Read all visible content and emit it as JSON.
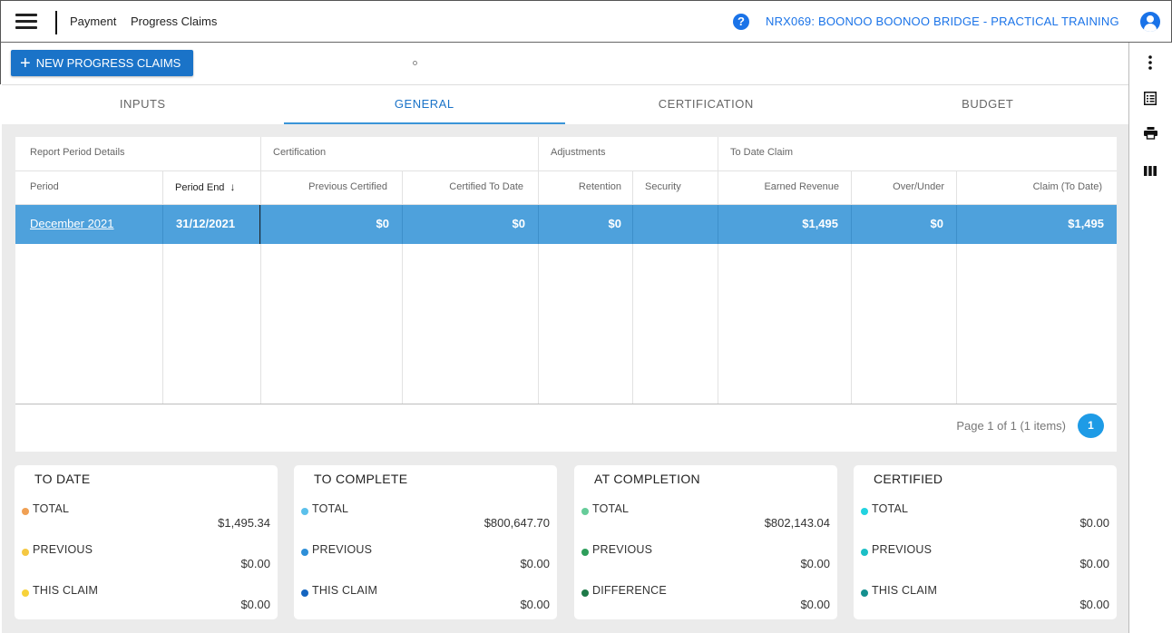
{
  "header": {
    "crumb_module": "Payment",
    "crumb_page": "Progress Claims",
    "help_glyph": "?",
    "project_title": "NRX069: BOONOO BOONOO BRIDGE - PRACTICAL TRAINING"
  },
  "toolbar": {
    "new_button_icon": "+",
    "new_button_label": "NEW PROGRESS CLAIMS"
  },
  "tabs": [
    {
      "label": "INPUTS",
      "active": false
    },
    {
      "label": "GENERAL",
      "active": true
    },
    {
      "label": "CERTIFICATION",
      "active": false
    },
    {
      "label": "BUDGET",
      "active": false
    }
  ],
  "grid": {
    "groups": {
      "report": "Report Period Details",
      "certification": "Certification",
      "adjustments": "Adjustments",
      "to_date_claim": "To Date Claim"
    },
    "columns": {
      "period": "Period",
      "period_end": "Period End",
      "sort_glyph": "↓",
      "previous_certified": "Previous Certified",
      "certified_to_date": "Certified To Date",
      "retention": "Retention",
      "security": "Security",
      "earned_revenue": "Earned Revenue",
      "over_under": "Over/Under",
      "claim_to_date": "Claim (To Date)"
    },
    "rows": [
      {
        "period": "December 2021",
        "period_end": "31/12/2021",
        "previous_certified": "$0",
        "certified_to_date": "$0",
        "retention": "$0",
        "security": "",
        "earned_revenue": "$1,495",
        "over_under": "$0",
        "claim_to_date": "$1,495"
      }
    ],
    "pager": {
      "summary": "Page 1 of 1 (1 items)",
      "current_page": "1"
    }
  },
  "cards": [
    {
      "title": "TO DATE",
      "items": [
        {
          "label": "TOTAL",
          "value": "$1,495.34",
          "color": "#f0a054"
        },
        {
          "label": "PREVIOUS",
          "value": "$0.00",
          "color": "#f5c842"
        },
        {
          "label": "THIS CLAIM",
          "value": "$0.00",
          "color": "#f7d23a"
        }
      ]
    },
    {
      "title": "TO COMPLETE",
      "items": [
        {
          "label": "TOTAL",
          "value": "$800,647.70",
          "color": "#5bc0eb"
        },
        {
          "label": "PREVIOUS",
          "value": "$0.00",
          "color": "#2e8fd8"
        },
        {
          "label": "THIS CLAIM",
          "value": "$0.00",
          "color": "#1565c0"
        }
      ]
    },
    {
      "title": "AT COMPLETION",
      "items": [
        {
          "label": "TOTAL",
          "value": "$802,143.04",
          "color": "#66cc99"
        },
        {
          "label": "PREVIOUS",
          "value": "$0.00",
          "color": "#2e9e5b"
        },
        {
          "label": "DIFFERENCE",
          "value": "$0.00",
          "color": "#1e7a48"
        }
      ]
    },
    {
      "title": "CERTIFIED",
      "items": [
        {
          "label": "TOTAL",
          "value": "$0.00",
          "color": "#22d3e0"
        },
        {
          "label": "PREVIOUS",
          "value": "$0.00",
          "color": "#1cbfc6"
        },
        {
          "label": "THIS CLAIM",
          "value": "$0.00",
          "color": "#14908f"
        }
      ]
    }
  ],
  "icons": {
    "menu": "hamburger-menu-icon",
    "help": "help-circle-icon",
    "user": "user-account-icon",
    "more": "more-vertical-icon",
    "list": "list-view-icon",
    "print": "printer-icon",
    "columns": "columns-icon"
  }
}
